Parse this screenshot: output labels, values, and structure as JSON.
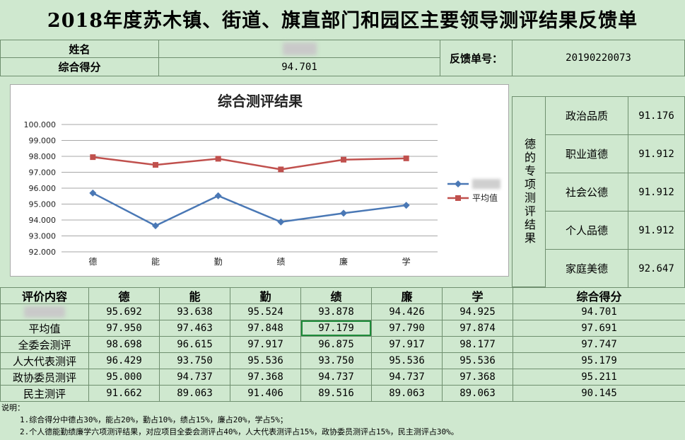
{
  "title": "2018年度苏木镇、街道、旗直部门和园区主要领导测评结果反馈单",
  "header": {
    "name_label": "姓名",
    "score_label": "综合得分",
    "score_value": "94.701",
    "feedback_label": "反馈单号：",
    "feedback_no": "20190220073"
  },
  "side": {
    "group_label": "德的专项测评结果",
    "items": [
      {
        "label": "政治品质",
        "value": "91.176"
      },
      {
        "label": "职业道德",
        "value": "91.912"
      },
      {
        "label": "社会公德",
        "value": "91.912"
      },
      {
        "label": "个人品德",
        "value": "91.912"
      },
      {
        "label": "家庭美德",
        "value": "92.647"
      }
    ]
  },
  "chart_data": {
    "type": "line",
    "title": "综合测评结果",
    "categories": [
      "德",
      "能",
      "勤",
      "绩",
      "廉",
      "学"
    ],
    "ylim": [
      92.0,
      100.0
    ],
    "yticks": [
      "92.000",
      "93.000",
      "94.000",
      "95.000",
      "96.000",
      "97.000",
      "98.000",
      "99.000",
      "100.000"
    ],
    "grid": true,
    "legend": "right",
    "series": [
      {
        "name": "",
        "color": "#4a78b5",
        "marker": "diamond",
        "values": [
          95.692,
          93.638,
          95.524,
          93.878,
          94.426,
          94.925
        ]
      },
      {
        "name": "平均值",
        "color": "#c0504d",
        "marker": "square",
        "values": [
          97.95,
          97.463,
          97.848,
          97.179,
          97.79,
          97.874
        ]
      }
    ]
  },
  "table": {
    "headers": [
      "评价内容",
      "德",
      "能",
      "勤",
      "绩",
      "廉",
      "学",
      "综合得分"
    ],
    "rows": [
      {
        "label": "",
        "cells": [
          "95.692",
          "93.638",
          "95.524",
          "93.878",
          "94.426",
          "94.925",
          "94.701"
        ]
      },
      {
        "label": "平均值",
        "cells": [
          "97.950",
          "97.463",
          "97.848",
          "97.179",
          "97.790",
          "97.874",
          "97.691"
        ]
      },
      {
        "label": "全委会测评",
        "cells": [
          "98.698",
          "96.615",
          "97.917",
          "96.875",
          "97.917",
          "98.177",
          "97.747"
        ]
      },
      {
        "label": "人大代表测评",
        "cells": [
          "96.429",
          "93.750",
          "95.536",
          "93.750",
          "95.536",
          "95.536",
          "95.179"
        ]
      },
      {
        "label": "政协委员测评",
        "cells": [
          "95.000",
          "94.737",
          "97.368",
          "94.737",
          "94.737",
          "97.368",
          "95.211"
        ]
      },
      {
        "label": "民主测评",
        "cells": [
          "91.662",
          "89.063",
          "91.406",
          "89.516",
          "89.063",
          "89.063",
          "90.145"
        ]
      }
    ]
  },
  "notes": {
    "heading": "说明：",
    "lines": [
      "1.综合得分中德占30%，能占20%，勤占10%，绩占15%，廉占20%，学占5%；",
      "2.个人德能勤绩廉学六项测评结果，对应项目全委会测评占40%，人大代表测评占15%，政协委员测评占15%，民主测评占30%。"
    ]
  }
}
